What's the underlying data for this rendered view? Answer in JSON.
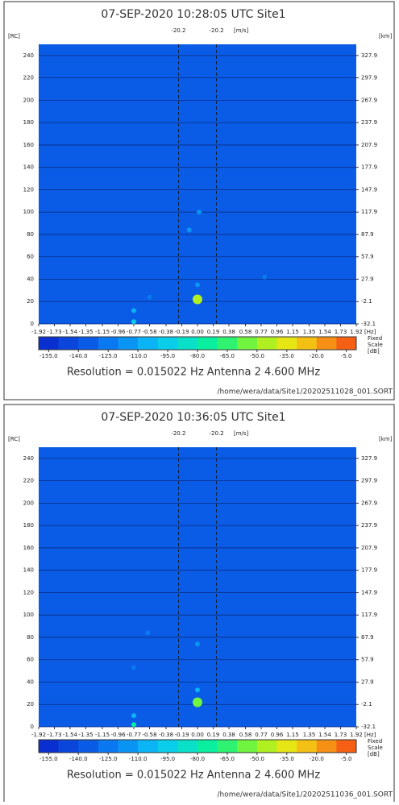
{
  "chart_data": [
    {
      "type": "heatmap",
      "title": "07-SEP-2020 10:28:05 UTC   Site1",
      "ylabel": "[RC]",
      "y2label": "[km]",
      "xlabel": "[Hz]",
      "marker_unit": "[m/s]",
      "markers": [
        {
          "x": -0.23,
          "label": "-20.2"
        },
        {
          "x": 0.23,
          "label": "-20.2"
        }
      ],
      "xlim": [
        -1.92,
        1.92
      ],
      "xticks": [
        -1.92,
        -1.73,
        -1.54,
        -1.35,
        -1.15,
        -0.96,
        -0.77,
        -0.58,
        -0.38,
        -0.19,
        {
          "value": 0,
          "label": "0.00"
        },
        0.19,
        0.38,
        0.58,
        0.77,
        0.96,
        1.15,
        1.35,
        1.54,
        1.73,
        1.92
      ],
      "ylim": [
        0,
        250
      ],
      "yticks": [
        0,
        20,
        40,
        60,
        80,
        100,
        120,
        140,
        160,
        180,
        200,
        220,
        240
      ],
      "y2lim": [
        -32.1,
        342.9
      ],
      "y2ticks": [
        -32.1,
        -2.1,
        27.9,
        57.9,
        87.9,
        117.9,
        147.9,
        177.9,
        207.9,
        237.9,
        267.9,
        297.9,
        327.9
      ],
      "x": [
        -0.77,
        -0.77,
        0.0,
        0.0,
        -0.1,
        0.02,
        0.81,
        -0.58
      ],
      "y": [
        2,
        12,
        22,
        35,
        84,
        100,
        42,
        24
      ],
      "values": [
        -95,
        -110,
        -50,
        -115,
        -120,
        -120,
        -125,
        -125
      ],
      "clim": [
        -160,
        0
      ],
      "colors": [
        "#0a2fd0",
        "#0a45dc",
        "#0a5ce6",
        "#0a78f0",
        "#0a95f5",
        "#0ab4f5",
        "#0acdea",
        "#0ae0c8",
        "#0aeea0",
        "#2ef270",
        "#70f440",
        "#b0f020",
        "#e6e614",
        "#f5c014",
        "#f59014",
        "#f56014"
      ],
      "cticks": [
        {
          "value": -155,
          "label": "-155.0"
        },
        {
          "value": -140,
          "label": "-140.0"
        },
        {
          "value": -125,
          "label": "-125.0"
        },
        {
          "value": -110,
          "label": "-110.0"
        },
        {
          "value": -95,
          "label": "-95.0"
        },
        {
          "value": -80,
          "label": "-80.0"
        },
        {
          "value": -65,
          "label": "-65.0"
        },
        {
          "value": -50,
          "label": "-50.0"
        },
        {
          "value": -35,
          "label": "-35.0"
        },
        {
          "value": -20,
          "label": "-20.0"
        },
        {
          "value": -5,
          "label": "-5.0"
        }
      ],
      "scale_label": [
        "Fixed",
        "Scale",
        "[dB]"
      ],
      "resolution": "Resolution = 0.015022 Hz   Antenna  2    4.600 MHz",
      "file": "/home/wera/data/Site1/20202511028_001.SORT"
    },
    {
      "type": "heatmap",
      "title": "07-SEP-2020 10:36:05 UTC   Site1",
      "ylabel": "[RC]",
      "y2label": "[km]",
      "xlabel": "[Hz]",
      "marker_unit": "[m/s]",
      "markers": [
        {
          "x": -0.23,
          "label": "-20.2"
        },
        {
          "x": 0.23,
          "label": "-20.2"
        }
      ],
      "xlim": [
        -1.92,
        1.92
      ],
      "xticks": [
        -1.92,
        -1.73,
        -1.54,
        -1.35,
        -1.15,
        -0.96,
        -0.77,
        -0.58,
        -0.38,
        -0.19,
        {
          "value": 0,
          "label": "0.00"
        },
        0.19,
        0.38,
        0.58,
        0.77,
        0.96,
        1.15,
        1.35,
        1.54,
        1.73,
        1.92
      ],
      "ylim": [
        0,
        250
      ],
      "yticks": [
        0,
        20,
        40,
        60,
        80,
        100,
        120,
        140,
        160,
        180,
        200,
        220,
        240
      ],
      "y2lim": [
        -32.1,
        342.9
      ],
      "y2ticks": [
        -32.1,
        -2.1,
        27.9,
        57.9,
        87.9,
        117.9,
        147.9,
        177.9,
        207.9,
        237.9,
        267.9,
        297.9,
        327.9
      ],
      "x": [
        -0.77,
        -0.77,
        0.0,
        0.0,
        0.0,
        -0.6,
        -0.77
      ],
      "y": [
        2,
        10,
        22,
        33,
        74,
        84,
        53
      ],
      "values": [
        -80,
        -105,
        -55,
        -110,
        -120,
        -125,
        -125
      ],
      "clim": [
        -160,
        0
      ],
      "colors": [
        "#0a2fd0",
        "#0a45dc",
        "#0a5ce6",
        "#0a78f0",
        "#0a95f5",
        "#0ab4f5",
        "#0acdea",
        "#0ae0c8",
        "#0aeea0",
        "#2ef270",
        "#70f440",
        "#b0f020",
        "#e6e614",
        "#f5c014",
        "#f59014",
        "#f56014"
      ],
      "cticks": [
        {
          "value": -155,
          "label": "-155.0"
        },
        {
          "value": -140,
          "label": "-140.0"
        },
        {
          "value": -125,
          "label": "-125.0"
        },
        {
          "value": -110,
          "label": "-110.0"
        },
        {
          "value": -95,
          "label": "-95.0"
        },
        {
          "value": -80,
          "label": "-80.0"
        },
        {
          "value": -65,
          "label": "-65.0"
        },
        {
          "value": -50,
          "label": "-50.0"
        },
        {
          "value": -35,
          "label": "-35.0"
        },
        {
          "value": -20,
          "label": "-20.0"
        },
        {
          "value": -5,
          "label": "-5.0"
        }
      ],
      "scale_label": [
        "Fixed",
        "Scale",
        "[dB]"
      ],
      "resolution": "Resolution = 0.015022 Hz   Antenna  2    4.600 MHz",
      "file": "/home/wera/data/Site1/20202511036_001.SORT"
    }
  ]
}
